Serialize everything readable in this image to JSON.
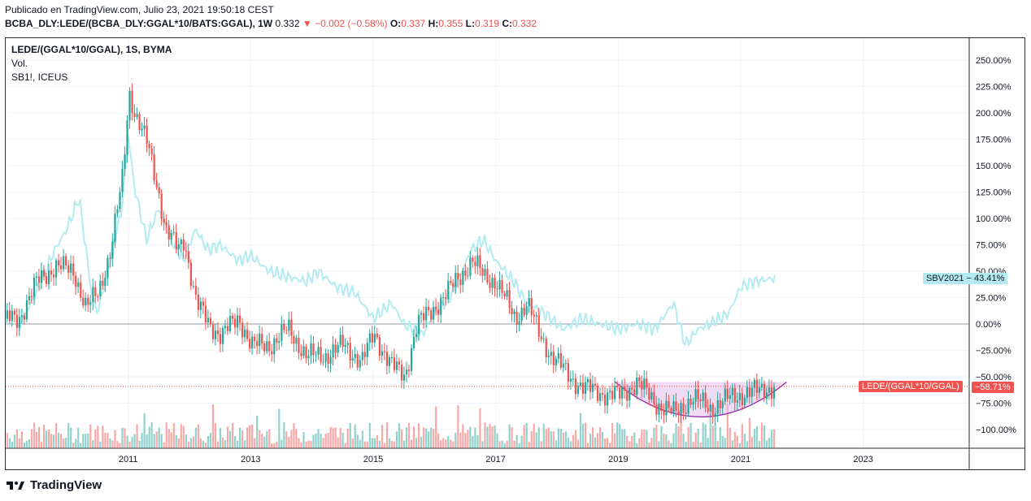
{
  "header": {
    "published": "Publicado en TradingView.com, Julio 23, 2021 19:50:18 CEST",
    "symbol": "BCBA_DLY:LEDE/(BCBA_DLY:GGAL*10/BATS:GGAL), 1W",
    "last": "0.332",
    "change": "−0.002 (−0.58%)",
    "o_label": "O:",
    "o": "0.337",
    "h_label": "H:",
    "h": "0.355",
    "l_label": "L:",
    "l": "0.319",
    "c_label": "C:",
    "c": "0.332"
  },
  "legend": {
    "title": "LEDE/(GGAL*10/GGAL), 1S, BYMA",
    "vol": "Vol.",
    "compare": "SB1!, ICEUS"
  },
  "tags": {
    "sbv_name": "SBV2021",
    "sbv_value": "43.41%",
    "lede_name": "LEDE/(GGAL*10/GGAL)",
    "lede_value": "−58.71%"
  },
  "footer": {
    "brand": "TradingView"
  },
  "colors": {
    "up": "#26a69a",
    "down": "#ef5350",
    "compare": "#b2ebf2",
    "arc": "#9c27b0",
    "arc_fill": "#e1bee7",
    "zero": "#9598a1"
  },
  "chart_data": {
    "type": "line",
    "scale": "percent",
    "xlabel": "",
    "ylabel": "",
    "ylim": [
      -110,
      260
    ],
    "x_ticks": [
      "2011",
      "2013",
      "2015",
      "2017",
      "2019",
      "2021",
      "2023"
    ],
    "y_ticks": [
      "250.00%",
      "225.00%",
      "200.00%",
      "175.00%",
      "150.00%",
      "125.00%",
      "100.00%",
      "75.00%",
      "50.00%",
      "25.00%",
      "0.00%",
      "−25.00%",
      "−50.00%",
      "−75.00%",
      "−100.00%"
    ],
    "series": [
      {
        "name": "LEDE/(GGAL*10/GGAL)",
        "style": "candles",
        "x": [
          2009.2,
          2009.5,
          2009.8,
          2010.1,
          2010.3,
          2010.5,
          2010.7,
          2010.9,
          2011.0,
          2011.1,
          2011.3,
          2011.5,
          2011.6,
          2011.8,
          2011.9,
          2012.1,
          2012.3,
          2012.5,
          2012.8,
          2013.0,
          2013.3,
          2013.6,
          2013.9,
          2014.2,
          2014.5,
          2014.8,
          2015.0,
          2015.3,
          2015.5,
          2015.7,
          2015.9,
          2016.2,
          2016.4,
          2016.6,
          2016.8,
          2017.0,
          2017.3,
          2017.5,
          2017.7,
          2017.9,
          2018.2,
          2018.4,
          2018.7,
          2019.0,
          2019.3,
          2019.6,
          2019.9,
          2020.2,
          2020.5,
          2020.8,
          2021.1,
          2021.3,
          2021.56
        ],
        "values": [
          5,
          40,
          55,
          50,
          15,
          30,
          70,
          140,
          220,
          200,
          170,
          120,
          90,
          70,
          80,
          20,
          0,
          -10,
          5,
          -20,
          -20,
          -5,
          -30,
          -30,
          -20,
          -35,
          -10,
          -40,
          -50,
          0,
          10,
          30,
          45,
          60,
          45,
          40,
          5,
          20,
          -10,
          -30,
          -50,
          -60,
          -65,
          -68,
          -55,
          -75,
          -85,
          -70,
          -80,
          -70,
          -65,
          -63,
          -59
        ]
      },
      {
        "name": "SBV2021",
        "style": "line",
        "x": [
          2009.2,
          2009.5,
          2009.8,
          2010.0,
          2010.2,
          2010.4,
          2010.5,
          2010.7,
          2010.9,
          2011.0,
          2011.1,
          2011.3,
          2011.5,
          2011.7,
          2011.9,
          2012.1,
          2012.3,
          2012.5,
          2012.8,
          2013.0,
          2013.3,
          2013.6,
          2013.9,
          2014.1,
          2014.4,
          2014.7,
          2015.0,
          2015.3,
          2015.5,
          2015.8,
          2016.0,
          2016.3,
          2016.6,
          2016.8,
          2017.0,
          2017.3,
          2017.5,
          2017.8,
          2018.1,
          2018.4,
          2018.7,
          2019.0,
          2019.3,
          2019.6,
          2019.9,
          2020.1,
          2020.3,
          2020.5,
          2020.8,
          2021.0,
          2021.2,
          2021.56
        ],
        "values": [
          -5,
          30,
          70,
          90,
          120,
          30,
          10,
          60,
          110,
          180,
          130,
          80,
          110,
          80,
          60,
          90,
          70,
          75,
          60,
          65,
          50,
          45,
          40,
          50,
          35,
          30,
          5,
          20,
          0,
          -10,
          10,
          30,
          70,
          80,
          60,
          40,
          20,
          10,
          -5,
          5,
          0,
          -5,
          0,
          -5,
          20,
          -20,
          -5,
          0,
          10,
          35,
          40,
          43.41
        ]
      }
    ],
    "annotations": [
      "Rounded-bottom arc drawn under LEDE/(GGAL*10/GGAL) from 2019 to 2021",
      "Dotted last-price line at −58.71%"
    ]
  }
}
